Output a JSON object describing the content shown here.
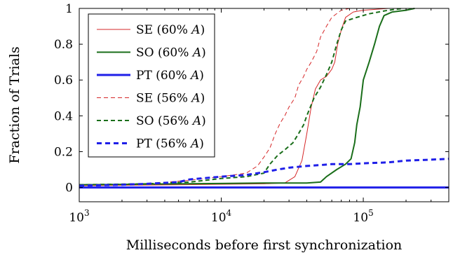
{
  "chart_data": {
    "type": "line",
    "title": "",
    "xlabel": "Milliseconds before first synchronization",
    "ylabel": "Fraction of Trials",
    "xscale": "log",
    "xlim": [
      1000,
      400000
    ],
    "ylim": [
      -0.08,
      1.0
    ],
    "x_ticks": [
      {
        "value": 1000,
        "base": "10",
        "exp": "3"
      },
      {
        "value": 10000,
        "base": "10",
        "exp": "4"
      },
      {
        "value": 100000,
        "base": "10",
        "exp": "5"
      }
    ],
    "y_ticks": [
      {
        "value": 0,
        "label": "0"
      },
      {
        "value": 0.2,
        "label": "0.2"
      },
      {
        "value": 0.4,
        "label": "0.4"
      },
      {
        "value": 0.6,
        "label": "0.6"
      },
      {
        "value": 0.8,
        "label": "0.8"
      },
      {
        "value": 1,
        "label": "1"
      }
    ],
    "grid": false,
    "legend_position": "top-left",
    "series": [
      {
        "name": "SE (60% A)",
        "label_main": "SE (60% ",
        "label_italic": "A",
        "label_end": ")",
        "color": "#d62728",
        "style": "solid",
        "width": 1,
        "points": [
          [
            1000,
            0.01
          ],
          [
            2000,
            0.012
          ],
          [
            5000,
            0.015
          ],
          [
            10000,
            0.018
          ],
          [
            20000,
            0.02
          ],
          [
            28000,
            0.025
          ],
          [
            33000,
            0.06
          ],
          [
            37000,
            0.15
          ],
          [
            40000,
            0.3
          ],
          [
            43000,
            0.45
          ],
          [
            46000,
            0.55
          ],
          [
            50000,
            0.6
          ],
          [
            55000,
            0.62
          ],
          [
            60000,
            0.66
          ],
          [
            63000,
            0.7
          ],
          [
            66000,
            0.8
          ],
          [
            70000,
            0.88
          ],
          [
            75000,
            0.95
          ],
          [
            85000,
            0.98
          ],
          [
            100000,
            0.99
          ],
          [
            150000,
            1.0
          ],
          [
            220000,
            1.0
          ]
        ]
      },
      {
        "name": "SO (60% A)",
        "label_main": "SO (60% ",
        "label_italic": "A",
        "label_end": ")",
        "color": "#1a6e1a",
        "style": "solid",
        "width": 2,
        "points": [
          [
            1000,
            0.015
          ],
          [
            5000,
            0.02
          ],
          [
            10000,
            0.022
          ],
          [
            20000,
            0.025
          ],
          [
            40000,
            0.025
          ],
          [
            50000,
            0.03
          ],
          [
            55000,
            0.06
          ],
          [
            65000,
            0.1
          ],
          [
            75000,
            0.13
          ],
          [
            82000,
            0.16
          ],
          [
            87000,
            0.25
          ],
          [
            90000,
            0.35
          ],
          [
            95000,
            0.45
          ],
          [
            100000,
            0.6
          ],
          [
            110000,
            0.7
          ],
          [
            120000,
            0.8
          ],
          [
            130000,
            0.9
          ],
          [
            140000,
            0.96
          ],
          [
            160000,
            0.98
          ],
          [
            200000,
            0.99
          ],
          [
            230000,
            1.0
          ]
        ]
      },
      {
        "name": "PT (60% A)",
        "label_main": "PT (60% ",
        "label_italic": "A",
        "label_end": ")",
        "color": "#1f1fe8",
        "style": "solid",
        "width": 3,
        "points": [
          [
            1000,
            0.0
          ],
          [
            400000,
            0.0
          ]
        ]
      },
      {
        "name": "SE (56% A)",
        "label_main": "SE (56% ",
        "label_italic": "A",
        "label_end": ")",
        "color": "#d62728",
        "style": "dashed",
        "width": 1,
        "points": [
          [
            1000,
            0.015
          ],
          [
            3000,
            0.02
          ],
          [
            6000,
            0.04
          ],
          [
            10000,
            0.06
          ],
          [
            15000,
            0.08
          ],
          [
            18000,
            0.12
          ],
          [
            20000,
            0.17
          ],
          [
            22000,
            0.22
          ],
          [
            24000,
            0.3
          ],
          [
            26000,
            0.36
          ],
          [
            28000,
            0.4
          ],
          [
            30000,
            0.45
          ],
          [
            33000,
            0.5
          ],
          [
            35000,
            0.57
          ],
          [
            38000,
            0.62
          ],
          [
            40000,
            0.66
          ],
          [
            43000,
            0.7
          ],
          [
            47000,
            0.76
          ],
          [
            50000,
            0.84
          ],
          [
            55000,
            0.9
          ],
          [
            60000,
            0.95
          ],
          [
            70000,
            0.99
          ],
          [
            80000,
            1.0
          ]
        ]
      },
      {
        "name": "SO (56% A)",
        "label_main": "SO (56% ",
        "label_italic": "A",
        "label_end": ")",
        "color": "#1a6e1a",
        "style": "dashed",
        "width": 2,
        "points": [
          [
            1000,
            0.015
          ],
          [
            3000,
            0.02
          ],
          [
            6000,
            0.03
          ],
          [
            10000,
            0.05
          ],
          [
            15000,
            0.06
          ],
          [
            20000,
            0.08
          ],
          [
            22000,
            0.13
          ],
          [
            25000,
            0.18
          ],
          [
            28000,
            0.21
          ],
          [
            32000,
            0.25
          ],
          [
            35000,
            0.3
          ],
          [
            38000,
            0.35
          ],
          [
            40000,
            0.4
          ],
          [
            45000,
            0.5
          ],
          [
            50000,
            0.56
          ],
          [
            55000,
            0.63
          ],
          [
            60000,
            0.7
          ],
          [
            65000,
            0.8
          ],
          [
            70000,
            0.88
          ],
          [
            75000,
            0.93
          ],
          [
            90000,
            0.95
          ],
          [
            110000,
            0.97
          ],
          [
            150000,
            0.99
          ],
          [
            190000,
            1.0
          ]
        ]
      },
      {
        "name": "PT (56% A)",
        "label_main": "PT (56% ",
        "label_italic": "A",
        "label_end": ")",
        "color": "#1f1fe8",
        "style": "dashed",
        "width": 3,
        "points": [
          [
            1000,
            0.01
          ],
          [
            2000,
            0.015
          ],
          [
            3000,
            0.02
          ],
          [
            5000,
            0.03
          ],
          [
            6000,
            0.045
          ],
          [
            10000,
            0.06
          ],
          [
            15000,
            0.07
          ],
          [
            20000,
            0.085
          ],
          [
            25000,
            0.1
          ],
          [
            30000,
            0.11
          ],
          [
            40000,
            0.12
          ],
          [
            50000,
            0.125
          ],
          [
            60000,
            0.13
          ],
          [
            80000,
            0.13
          ],
          [
            100000,
            0.135
          ],
          [
            150000,
            0.14
          ],
          [
            200000,
            0.15
          ],
          [
            300000,
            0.155
          ],
          [
            400000,
            0.16
          ]
        ]
      }
    ]
  }
}
